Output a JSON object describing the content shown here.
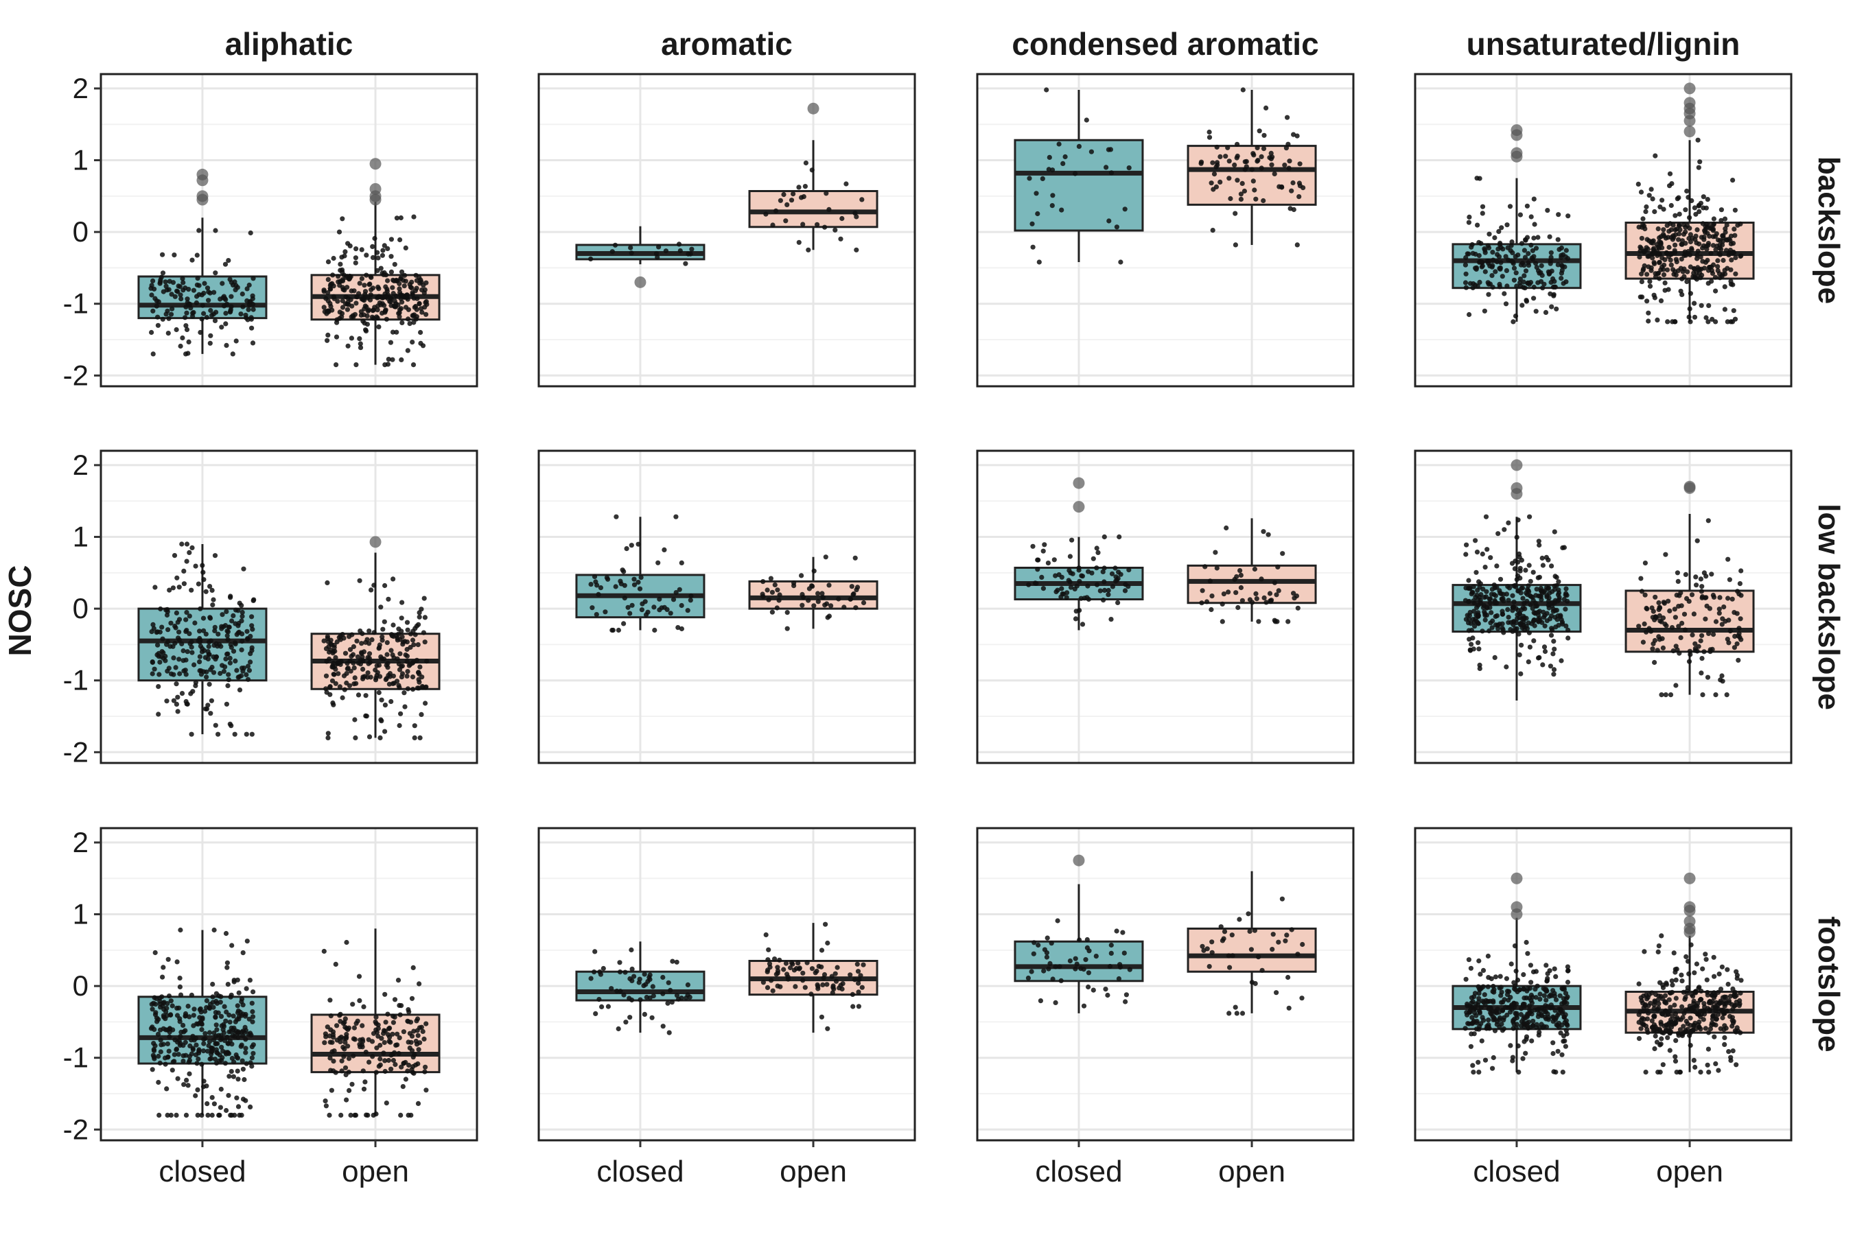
{
  "chart_data": {
    "type": "box",
    "ylabel": "NOSC",
    "xlabel": "",
    "ylim": [
      -2.15,
      2.2
    ],
    "yticks": [
      -2,
      -1,
      0,
      1,
      2
    ],
    "ytick_labels": [
      "-2",
      "-1",
      "0",
      "1",
      "2"
    ],
    "grid": true,
    "categories": [
      "closed",
      "open"
    ],
    "columns": [
      "aliphatic",
      "aromatic",
      "condensed aromatic",
      "unsaturated/lignin"
    ],
    "rows": [
      "backslope",
      "low backslope",
      "footslope"
    ],
    "colors": {
      "closed": "#7bb8bb",
      "open": "#f2cdbf",
      "edge": "#222222",
      "point": "#111111",
      "outlier": "#555555"
    },
    "panels": [
      [
        [
          {
            "category": "closed",
            "q1": -1.2,
            "median": -1.02,
            "q3": -0.62,
            "whisker_low": -1.7,
            "whisker_high": 0.2,
            "outliers": [
              0.45,
              0.5,
              0.72,
              0.8
            ],
            "n_points": 150
          },
          {
            "category": "open",
            "q1": -1.22,
            "median": -0.9,
            "q3": -0.6,
            "whisker_low": -1.85,
            "whisker_high": 0.42,
            "outliers": [
              0.45,
              0.5,
              0.6,
              0.95
            ],
            "n_points": 300
          }
        ],
        [
          {
            "category": "closed",
            "q1": -0.38,
            "median": -0.3,
            "q3": -0.18,
            "whisker_low": -0.45,
            "whisker_high": 0.08,
            "outliers": [
              -0.7
            ],
            "n_points": 15
          },
          {
            "category": "open",
            "q1": 0.07,
            "median": 0.28,
            "q3": 0.57,
            "whisker_low": -0.25,
            "whisker_high": 1.28,
            "outliers": [
              1.72
            ],
            "n_points": 30
          }
        ],
        [
          {
            "category": "closed",
            "q1": 0.02,
            "median": 0.82,
            "q3": 1.28,
            "whisker_low": -0.42,
            "whisker_high": 1.98,
            "outliers": [],
            "n_points": 30
          },
          {
            "category": "open",
            "q1": 0.38,
            "median": 0.87,
            "q3": 1.2,
            "whisker_low": -0.18,
            "whisker_high": 1.98,
            "outliers": [],
            "n_points": 80
          }
        ],
        [
          {
            "category": "closed",
            "q1": -0.78,
            "median": -0.4,
            "q3": -0.17,
            "whisker_low": -1.25,
            "whisker_high": 0.75,
            "outliers": [
              1.05,
              1.1,
              1.35,
              1.42
            ],
            "n_points": 200
          },
          {
            "category": "open",
            "q1": -0.65,
            "median": -0.3,
            "q3": 0.13,
            "whisker_low": -1.25,
            "whisker_high": 1.28,
            "outliers": [
              1.4,
              1.55,
              1.65,
              1.72,
              1.8,
              2.0
            ],
            "n_points": 350
          }
        ]
      ],
      [
        [
          {
            "category": "closed",
            "q1": -1.0,
            "median": -0.45,
            "q3": 0.0,
            "whisker_low": -1.75,
            "whisker_high": 0.9,
            "outliers": [],
            "n_points": 250
          },
          {
            "category": "open",
            "q1": -1.12,
            "median": -0.73,
            "q3": -0.35,
            "whisker_low": -1.8,
            "whisker_high": 0.78,
            "outliers": [
              0.93
            ],
            "n_points": 250
          }
        ],
        [
          {
            "category": "closed",
            "q1": -0.12,
            "median": 0.18,
            "q3": 0.47,
            "whisker_low": -0.3,
            "whisker_high": 1.28,
            "outliers": [],
            "n_points": 60
          },
          {
            "category": "open",
            "q1": 0.0,
            "median": 0.15,
            "q3": 0.38,
            "whisker_low": -0.28,
            "whisker_high": 0.72,
            "outliers": [],
            "n_points": 50
          }
        ],
        [
          {
            "category": "closed",
            "q1": 0.13,
            "median": 0.35,
            "q3": 0.57,
            "whisker_low": -0.3,
            "whisker_high": 1.0,
            "outliers": [
              1.42,
              1.75
            ],
            "n_points": 80
          },
          {
            "category": "open",
            "q1": 0.08,
            "median": 0.38,
            "q3": 0.6,
            "whisker_low": -0.18,
            "whisker_high": 1.26,
            "outliers": [],
            "n_points": 50
          }
        ],
        [
          {
            "category": "closed",
            "q1": -0.32,
            "median": 0.07,
            "q3": 0.33,
            "whisker_low": -1.28,
            "whisker_high": 1.28,
            "outliers": [
              1.6,
              1.68,
              2.0
            ],
            "n_points": 350
          },
          {
            "category": "open",
            "q1": -0.6,
            "median": -0.3,
            "q3": 0.25,
            "whisker_low": -1.2,
            "whisker_high": 1.32,
            "outliers": [
              1.68,
              1.7
            ],
            "n_points": 150
          }
        ]
      ],
      [
        [
          {
            "category": "closed",
            "q1": -1.08,
            "median": -0.72,
            "q3": -0.15,
            "whisker_low": -1.8,
            "whisker_high": 0.78,
            "outliers": [],
            "n_points": 350
          },
          {
            "category": "open",
            "q1": -1.2,
            "median": -0.95,
            "q3": -0.4,
            "whisker_low": -1.8,
            "whisker_high": 0.8,
            "outliers": [],
            "n_points": 200
          }
        ],
        [
          {
            "category": "closed",
            "q1": -0.2,
            "median": -0.08,
            "q3": 0.2,
            "whisker_low": -0.65,
            "whisker_high": 0.62,
            "outliers": [],
            "n_points": 60
          },
          {
            "category": "open",
            "q1": -0.12,
            "median": 0.1,
            "q3": 0.35,
            "whisker_low": -0.65,
            "whisker_high": 0.88,
            "outliers": [],
            "n_points": 80
          }
        ],
        [
          {
            "category": "closed",
            "q1": 0.07,
            "median": 0.27,
            "q3": 0.62,
            "whisker_low": -0.38,
            "whisker_high": 1.42,
            "outliers": [
              1.75
            ],
            "n_points": 50
          },
          {
            "category": "open",
            "q1": 0.2,
            "median": 0.42,
            "q3": 0.8,
            "whisker_low": -0.38,
            "whisker_high": 1.6,
            "outliers": [],
            "n_points": 40
          }
        ],
        [
          {
            "category": "closed",
            "q1": -0.6,
            "median": -0.3,
            "q3": 0.0,
            "whisker_low": -1.2,
            "whisker_high": 0.95,
            "outliers": [
              1.0,
              1.1,
              1.5
            ],
            "n_points": 350
          },
          {
            "category": "open",
            "q1": -0.65,
            "median": -0.35,
            "q3": -0.08,
            "whisker_low": -1.2,
            "whisker_high": 0.7,
            "outliers": [
              0.75,
              0.8,
              0.9,
              1.05,
              1.1,
              1.5
            ],
            "n_points": 350
          }
        ]
      ]
    ]
  }
}
